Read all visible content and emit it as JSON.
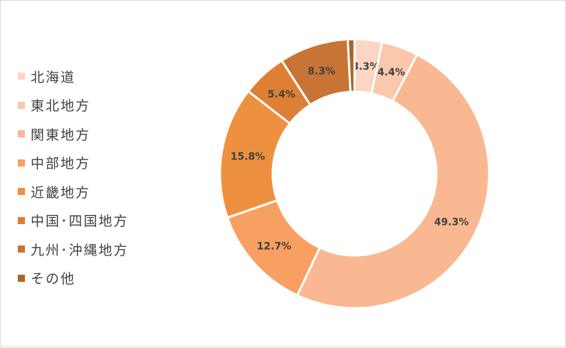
{
  "chart_data": {
    "type": "pie",
    "donut": true,
    "categories": [
      "北海道",
      "東北地方",
      "関東地方",
      "中部地方",
      "近畿地方",
      "中国･四国地方",
      "九州･沖縄地方",
      "その他"
    ],
    "values": [
      3.3,
      4.4,
      49.3,
      12.7,
      15.8,
      5.4,
      8.3,
      0.8
    ],
    "data_labels": [
      "3.3%",
      "4.4%",
      "49.3%",
      "12.7%",
      "15.8%",
      "5.4%",
      "8.3%",
      ""
    ],
    "order_in_ring": [
      0,
      1,
      2,
      3,
      4,
      5,
      6,
      7
    ],
    "legend_position": "left",
    "colors": [
      "#fcd5c5",
      "#fbc8ad",
      "#f9b891",
      "#f7a062",
      "#ed9140",
      "#dd8036",
      "#c87434",
      "#a8652c"
    ]
  }
}
